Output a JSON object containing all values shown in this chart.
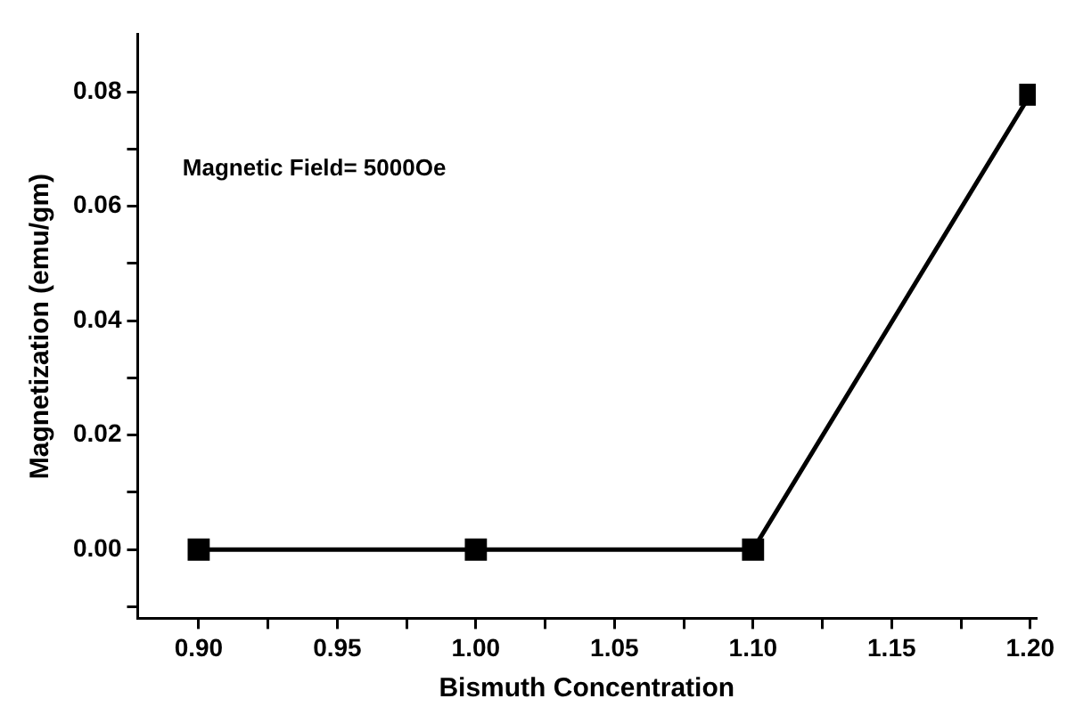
{
  "chart_data": {
    "type": "line",
    "xlabel": "Bismuth Concentration",
    "ylabel": "Magnetization (emu/gm)",
    "x": [
      0.9,
      1.0,
      1.1,
      1.2
    ],
    "series": [
      {
        "color": "#000000",
        "values": [
          0,
          0,
          0,
          0.0795
        ]
      }
    ],
    "xlim": [
      0.878,
      1.202
    ],
    "xticks": [
      {
        "value": 0.9,
        "label": "0.90"
      },
      {
        "value": 0.925,
        "label": null
      },
      {
        "value": 0.95,
        "label": "0.95"
      },
      {
        "value": 0.975,
        "label": null
      },
      {
        "value": 1.0,
        "label": "1.00"
      },
      {
        "value": 1.025,
        "label": null
      },
      {
        "value": 1.05,
        "label": "1.05"
      },
      {
        "value": 1.075,
        "label": null
      },
      {
        "value": 1.1,
        "label": "1.10"
      },
      {
        "value": 1.125,
        "label": null
      },
      {
        "value": 1.15,
        "label": "1.15"
      },
      {
        "value": 1.175,
        "label": null
      },
      {
        "value": 1.2,
        "label": "1.20"
      }
    ],
    "ylim": [
      -0.012,
      0.09
    ],
    "yticks": [
      {
        "value": -0.01,
        "label": null
      },
      {
        "value": 0,
        "label": "0.00"
      },
      {
        "value": 0.01,
        "label": null
      },
      {
        "value": 0.02,
        "label": "0.02"
      },
      {
        "value": 0.03,
        "label": null
      },
      {
        "value": 0.04,
        "label": "0.04"
      },
      {
        "value": 0.05,
        "label": null
      },
      {
        "value": 0.06,
        "label": "0.06"
      },
      {
        "value": 0.07,
        "label": null
      },
      {
        "value": 0.08,
        "label": "0.08"
      }
    ],
    "annotations": [
      "Magnetic Field= 5000Oe"
    ],
    "grid": false,
    "legend": false,
    "marker": "square",
    "line_style": "solid"
  }
}
